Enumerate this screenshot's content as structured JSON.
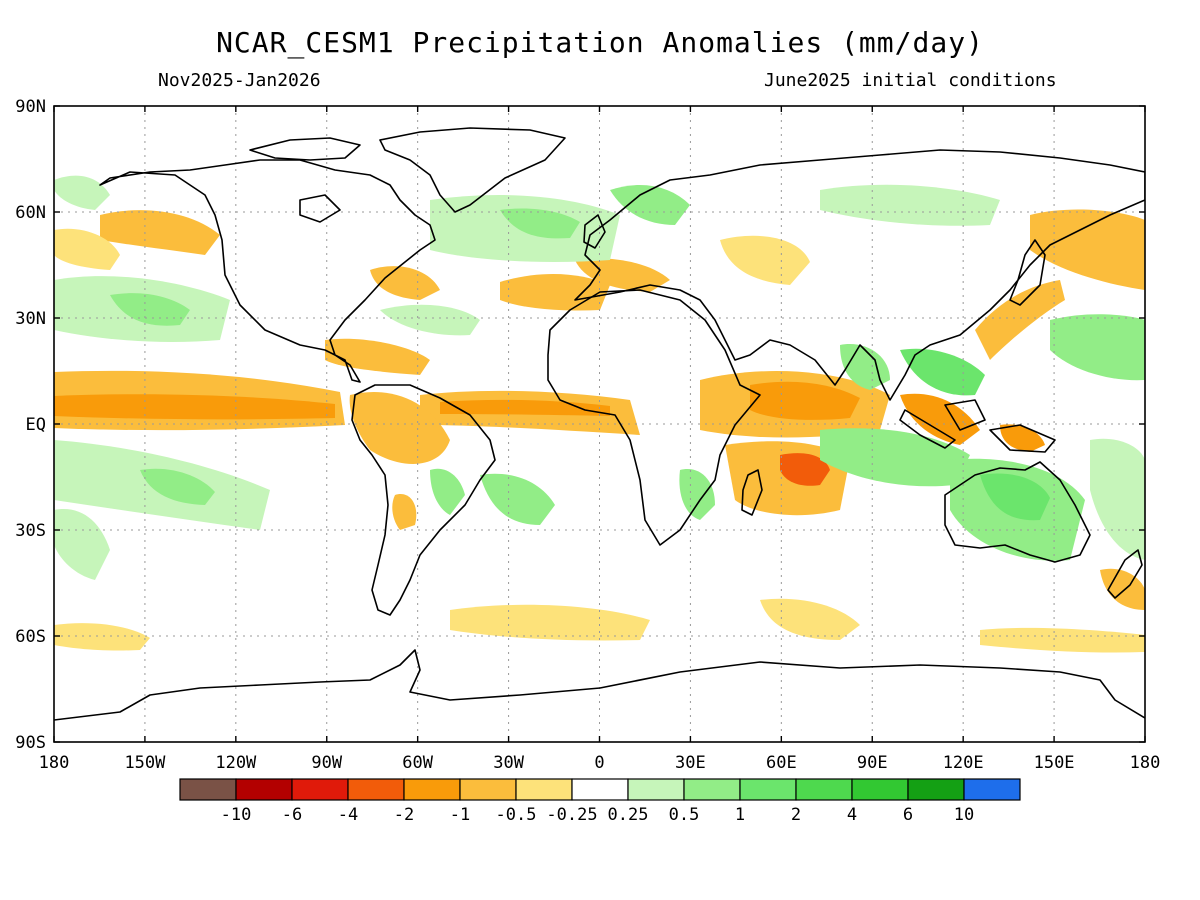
{
  "header": {
    "title": "NCAR_CESM1 Precipitation Anomalies (mm/day)",
    "period": "Nov2025-Jan2026",
    "init": "June2025 initial conditions"
  },
  "map": {
    "lon_ticks": [
      {
        "lon": -180,
        "label": "180"
      },
      {
        "lon": -150,
        "label": "150W"
      },
      {
        "lon": -120,
        "label": "120W"
      },
      {
        "lon": -90,
        "label": "90W"
      },
      {
        "lon": -60,
        "label": "60W"
      },
      {
        "lon": -30,
        "label": "30W"
      },
      {
        "lon": 0,
        "label": "0"
      },
      {
        "lon": 30,
        "label": "30E"
      },
      {
        "lon": 60,
        "label": "60E"
      },
      {
        "lon": 90,
        "label": "90E"
      },
      {
        "lon": 120,
        "label": "120E"
      },
      {
        "lon": 150,
        "label": "150E"
      },
      {
        "lon": 180,
        "label": "180"
      }
    ],
    "lat_ticks": [
      {
        "lat": 90,
        "label": "90N"
      },
      {
        "lat": 60,
        "label": "60N"
      },
      {
        "lat": 30,
        "label": "30N"
      },
      {
        "lat": 0,
        "label": "EQ"
      },
      {
        "lat": -30,
        "label": "30S"
      },
      {
        "lat": -60,
        "label": "60S"
      },
      {
        "lat": -90,
        "label": "90S"
      }
    ]
  },
  "colorbar": {
    "colors": [
      "#7a5246",
      "#b30000",
      "#e01a0a",
      "#f25c0a",
      "#f99b0a",
      "#fbbd3c",
      "#fde27a",
      "#ffffff",
      "#c6f5ba",
      "#92ed87",
      "#6be56c",
      "#4ed94e",
      "#32c832",
      "#14a014",
      "#1e6eeb"
    ],
    "labels": [
      "-10",
      "-6",
      "-4",
      "-2",
      "-1",
      "-0.5",
      "-0.25",
      "0.25",
      "0.5",
      "1",
      "2",
      "4",
      "6",
      "10"
    ]
  },
  "colors": {
    "dry_strong": "#f25c0a",
    "dry": "#f99b0a",
    "dry_light": "#fbbd3c",
    "dry_weak": "#fde27a",
    "wet_weak": "#c6f5ba",
    "wet_light": "#92ed87",
    "wet": "#6be56c",
    "wet_strong": "#32c832"
  }
}
